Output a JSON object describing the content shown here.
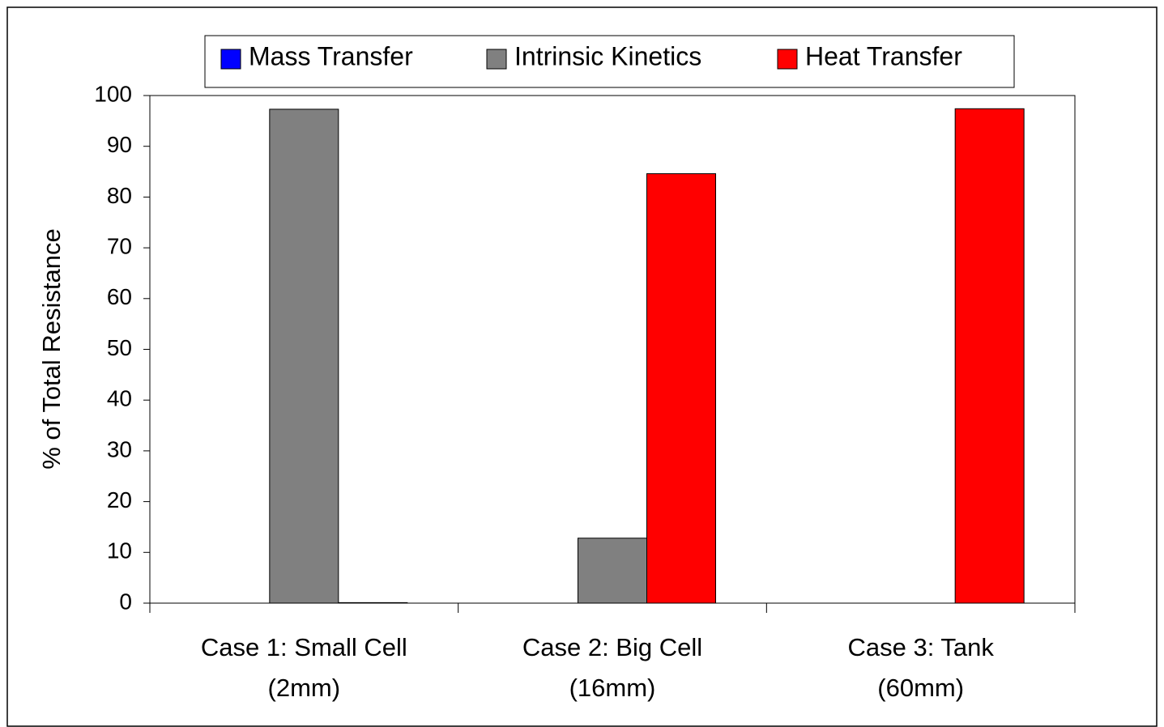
{
  "chart_data": {
    "type": "bar",
    "ylabel": "% of Total Resistance",
    "categories": [
      "Case 1: Small Cell\n(2mm)",
      "Case 2: Big Cell\n(16mm)",
      "Case 3: Tank\n(60mm)"
    ],
    "series": [
      {
        "name": "Mass Transfer",
        "color": "#0000ff",
        "values": [
          0,
          0,
          0
        ]
      },
      {
        "name": "Intrinsic Kinetics",
        "color": "#808080",
        "values": [
          97.3,
          12.8,
          0
        ]
      },
      {
        "name": "Heat Transfer",
        "color": "#ff0000",
        "values": [
          0.1,
          84.6,
          97.4
        ]
      }
    ],
    "ylim": [
      0,
      100
    ],
    "yticks": [
      0,
      10,
      20,
      30,
      40,
      50,
      60,
      70,
      80,
      90,
      100
    ],
    "legend": "top"
  }
}
